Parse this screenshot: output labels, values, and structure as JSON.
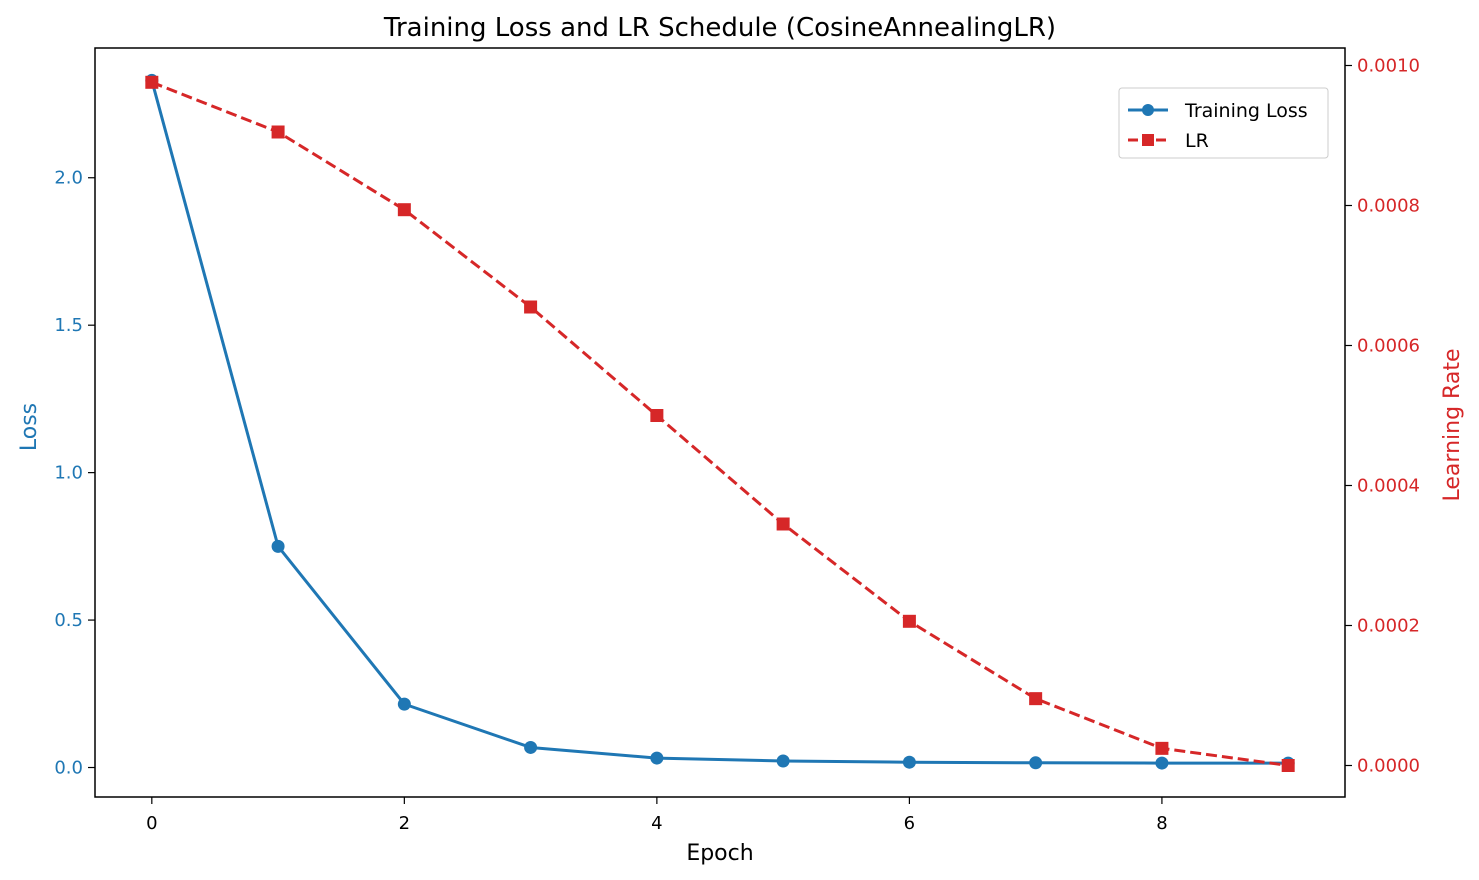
{
  "chart_data": {
    "type": "line",
    "title": "Training Loss and LR Schedule (CosineAnnealingLR)",
    "xlabel": "Epoch",
    "ylabel_left": "Loss",
    "ylabel_right": "Learning Rate",
    "x": [
      0,
      1,
      2,
      3,
      4,
      5,
      6,
      7,
      8,
      9
    ],
    "xlim": [
      -0.45,
      9.45
    ],
    "ylim_left": [
      -0.1,
      2.44
    ],
    "ylim_right": [
      -4.5e-05,
      0.001025
    ],
    "x_ticks": [
      0,
      2,
      4,
      6,
      8
    ],
    "y_ticks_left": [
      0.0,
      0.5,
      1.0,
      1.5,
      2.0
    ],
    "y_ticks_left_labels": [
      "0.0",
      "0.5",
      "1.0",
      "1.5",
      "2.0"
    ],
    "y_ticks_right": [
      0.0,
      0.0002,
      0.0004,
      0.0006,
      0.0008,
      0.001
    ],
    "y_ticks_right_labels": [
      "0.0000",
      "0.0002",
      "0.0004",
      "0.0006",
      "0.0008",
      "0.0010"
    ],
    "grid": false,
    "legend_position": "top-right",
    "series": [
      {
        "name": "Training Loss",
        "axis": "left",
        "color": "#1f77b4",
        "marker": "circle",
        "linestyle": "solid",
        "values": [
          2.33,
          0.75,
          0.215,
          0.068,
          0.032,
          0.022,
          0.018,
          0.016,
          0.015,
          0.015
        ]
      },
      {
        "name": "LR",
        "axis": "right",
        "color": "#d62728",
        "marker": "square",
        "linestyle": "dashed",
        "values": [
          0.000976,
          0.000905,
          0.000794,
          0.000655,
          0.0005,
          0.000345,
          0.000206,
          9.55e-05,
          2.45e-05,
          0.0
        ]
      }
    ]
  }
}
